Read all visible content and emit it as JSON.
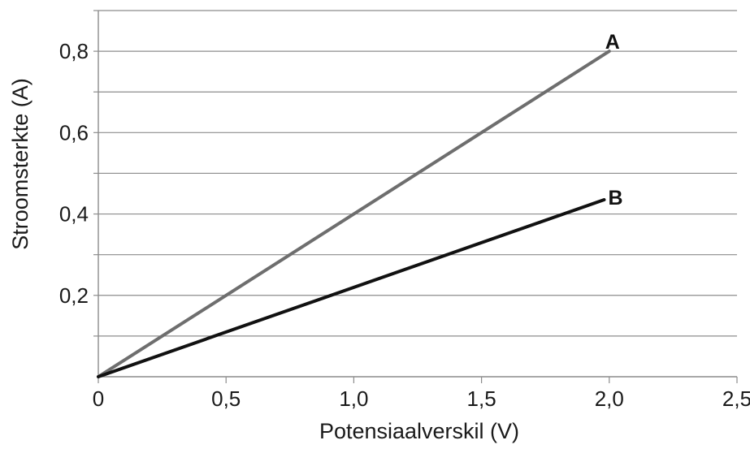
{
  "chart_data": {
    "type": "line",
    "title": "",
    "xlabel": "Potensiaalverskil (V)",
    "ylabel": "Stroomsterkte (A)",
    "xlim": [
      0,
      2.5
    ],
    "ylim": [
      0,
      0.9
    ],
    "x_ticks": [
      0,
      0.5,
      1.0,
      1.5,
      2.0,
      2.5
    ],
    "x_tick_labels": [
      "0",
      "0,5",
      "1,0",
      "1,5",
      "2,0",
      "2,5"
    ],
    "y_ticks": [
      0.2,
      0.4,
      0.6,
      0.8
    ],
    "y_tick_labels": [
      "0,2",
      "0,4",
      "0,6",
      "0,8"
    ],
    "y_gridlines": [
      0.1,
      0.2,
      0.3,
      0.4,
      0.5,
      0.6,
      0.7,
      0.8,
      0.9
    ],
    "grid": "horizontal",
    "legend": "none",
    "series": [
      {
        "name": "A",
        "color": "#6e6e6e",
        "points": [
          [
            0,
            0
          ],
          [
            2.0,
            0.8
          ]
        ]
      },
      {
        "name": "B",
        "color": "#111111",
        "points": [
          [
            0,
            0
          ],
          [
            1.98,
            0.435
          ]
        ]
      }
    ]
  }
}
